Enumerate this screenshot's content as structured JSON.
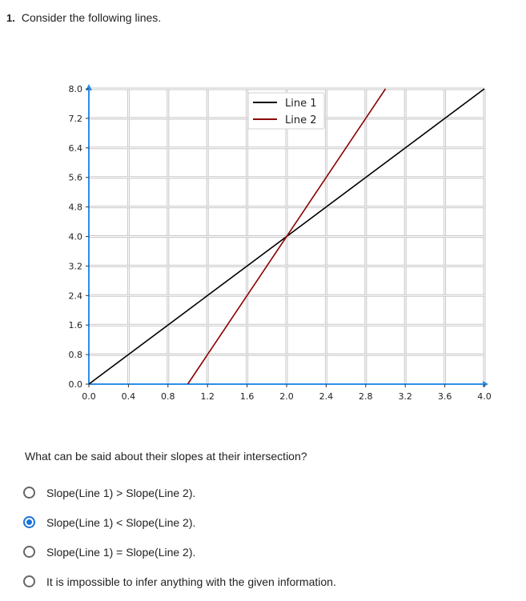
{
  "question": {
    "number": "1.",
    "prompt": "Consider the following lines.",
    "followup": "What can be said about their slopes at their intersection?"
  },
  "options": [
    {
      "label": "Slope(Line 1) > Slope(Line 2).",
      "selected": false
    },
    {
      "label": "Slope(Line 1) < Slope(Line 2).",
      "selected": true
    },
    {
      "label": "Slope(Line 1) = Slope(Line 2).",
      "selected": false
    },
    {
      "label": "It is impossible to infer anything with the given information.",
      "selected": false
    }
  ],
  "chart_data": {
    "type": "line",
    "title": "",
    "xlabel": "",
    "ylabel": "",
    "xlim": [
      0,
      4.0
    ],
    "ylim": [
      0,
      8.0
    ],
    "x_ticks": [
      "0.0",
      "0.4",
      "0.8",
      "1.2",
      "1.6",
      "2.0",
      "2.4",
      "2.8",
      "3.2",
      "3.6",
      "4.0"
    ],
    "y_ticks": [
      "0.0",
      "0.8",
      "1.6",
      "2.4",
      "3.2",
      "4.0",
      "4.8",
      "5.6",
      "6.4",
      "7.2",
      "8.0"
    ],
    "grid": true,
    "legend": "top-center",
    "series": [
      {
        "name": "Line 1",
        "color": "#000000",
        "x": [
          0,
          4.0
        ],
        "y": [
          0,
          8.0
        ]
      },
      {
        "name": "Line 2",
        "color": "#8b0000",
        "x": [
          1.0,
          3.0
        ],
        "y": [
          0,
          8.0
        ]
      }
    ],
    "axis_color": "#2b8fe8"
  }
}
